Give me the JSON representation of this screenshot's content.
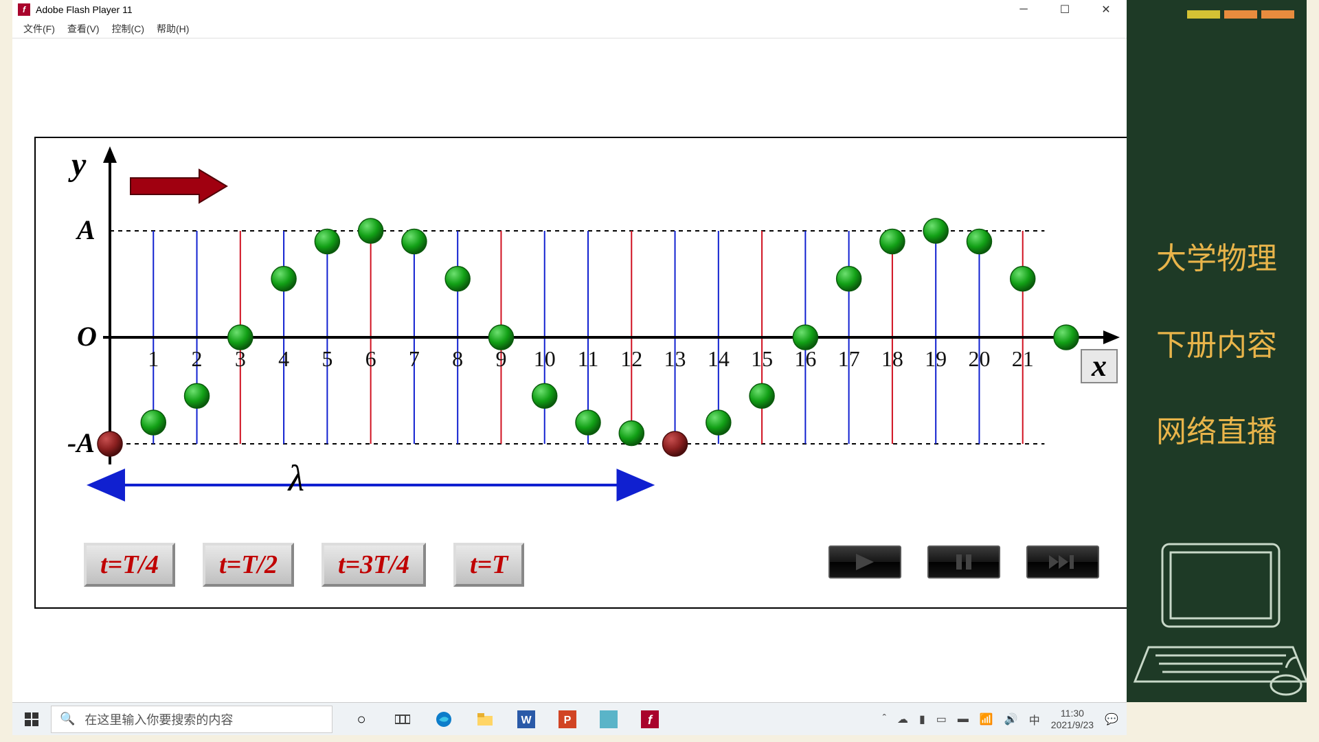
{
  "window": {
    "title": "Adobe Flash Player 11",
    "menu": [
      "文件(F)",
      "查看(V)",
      "控制(C)",
      "帮助(H)"
    ]
  },
  "chart": {
    "type": "scatter",
    "x_range": [
      0,
      21
    ],
    "y_range": [
      -1,
      1
    ],
    "y_axis_labels": [
      "A",
      "O",
      "-A"
    ],
    "y_label": "y",
    "x_label": "x",
    "x_ticks": [
      1,
      2,
      3,
      4,
      5,
      6,
      7,
      8,
      9,
      10,
      11,
      12,
      13,
      14,
      15,
      16,
      17,
      18,
      19,
      20,
      21
    ],
    "red_vlines": [
      0,
      3,
      6,
      9,
      12,
      15,
      18,
      21
    ],
    "blue_vlines": [
      1,
      2,
      4,
      5,
      7,
      8,
      10,
      11,
      13,
      14,
      16,
      17,
      19,
      20
    ],
    "lambda_label": "λ",
    "lambda_span": [
      0,
      12
    ],
    "arrow_color": "#a00010",
    "green_points": [
      {
        "x": 1,
        "y": -0.8
      },
      {
        "x": 2,
        "y": -0.55
      },
      {
        "x": 3,
        "y": 0.0
      },
      {
        "x": 4,
        "y": 0.55
      },
      {
        "x": 5,
        "y": 0.9
      },
      {
        "x": 6,
        "y": 1.0
      },
      {
        "x": 7,
        "y": 0.9
      },
      {
        "x": 8,
        "y": 0.55
      },
      {
        "x": 9,
        "y": 0.0
      },
      {
        "x": 10,
        "y": -0.55
      },
      {
        "x": 11,
        "y": -0.8
      },
      {
        "x": 12,
        "y": -0.9
      },
      {
        "x": 14,
        "y": -0.8
      },
      {
        "x": 15,
        "y": -0.55
      },
      {
        "x": 16,
        "y": 0.0
      },
      {
        "x": 17,
        "y": 0.55
      },
      {
        "x": 18,
        "y": 0.9
      },
      {
        "x": 19,
        "y": 1.0
      },
      {
        "x": 20,
        "y": 0.9
      },
      {
        "x": 21,
        "y": 0.55
      },
      {
        "x": 22,
        "y": 0.0
      }
    ],
    "red_points": [
      {
        "x": 0,
        "y": -1.0
      },
      {
        "x": 13,
        "y": -1.0
      }
    ],
    "dot_radius": 18,
    "green_fill": "#12a016",
    "green_stroke": "#0a5a0c",
    "red_fill": "#8b2020",
    "red_stroke": "#4a0d0d",
    "axis_color": "#000000",
    "grid_dash": "6,6",
    "vline_width": 2,
    "axis_fontsize": 32,
    "label_fontsize": 40
  },
  "time_buttons": [
    "t=T/4",
    "t=T/2",
    "t=3T/4",
    "t=T"
  ],
  "sidebar": {
    "bg": "#1e3a26",
    "text_color": "#e8b44a",
    "tab_colors": [
      "#d4c234",
      "#e88c3e",
      "#e88c3e"
    ],
    "lines": [
      "大学物理",
      "下册内容",
      "网络直播"
    ]
  },
  "taskbar": {
    "search_placeholder": "在这里输入你要搜索的内容",
    "ime": "中",
    "time": "11:30",
    "date": "2021/9/23"
  }
}
